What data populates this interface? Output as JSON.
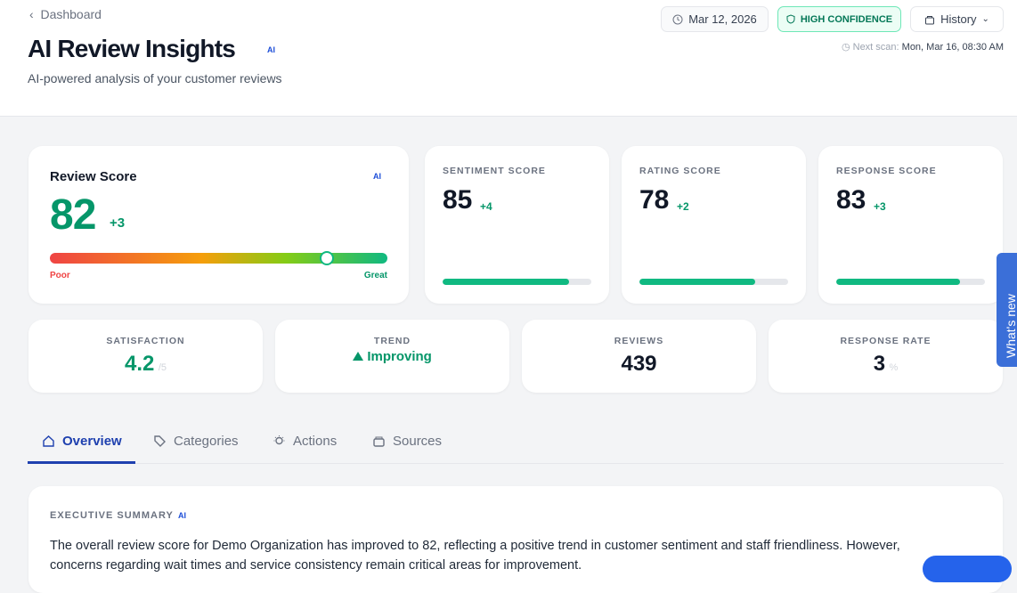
{
  "header": {
    "back": "Dashboard",
    "title": "AI Review Insights",
    "badge": "AI",
    "subtitle": "AI-powered analysis of your customer reviews",
    "date": "Mar 12, 2026",
    "confidence": "HIGH CONFIDENCE",
    "history": "History",
    "next_scan_label": "Next scan:",
    "next_scan": "Mon, Mar 16, 08:30 AM"
  },
  "review_score": {
    "title": "Review Score",
    "badge": "AI",
    "value": 82,
    "change": "+3",
    "low": "Poor",
    "high": "Great"
  },
  "scores": [
    {
      "label": "SENTIMENT SCORE",
      "value": 85,
      "change": "+4"
    },
    {
      "label": "RATING SCORE",
      "value": 78,
      "change": "+2"
    },
    {
      "label": "RESPONSE SCORE",
      "value": 83,
      "change": "+3"
    }
  ],
  "stats": [
    {
      "label": "SATISFACTION",
      "value": 4.2,
      "unit": "/5"
    },
    {
      "label": "TREND",
      "value": "Improving"
    },
    {
      "label": "REVIEWS",
      "value": 439
    },
    {
      "label": "RESPONSE RATE",
      "value": 3,
      "unit": "%"
    }
  ],
  "tabs": [
    "Overview",
    "Categories",
    "Actions",
    "Sources"
  ],
  "summary": {
    "title": "EXECUTIVE SUMMARY",
    "badge": "AI",
    "text": "The overall review score for Demo Organization has improved to 82, reflecting a positive trend in customer sentiment and staff friendliness. However, concerns regarding wait times and service consistency remain critical areas for improvement."
  },
  "side_tab": "What's new"
}
